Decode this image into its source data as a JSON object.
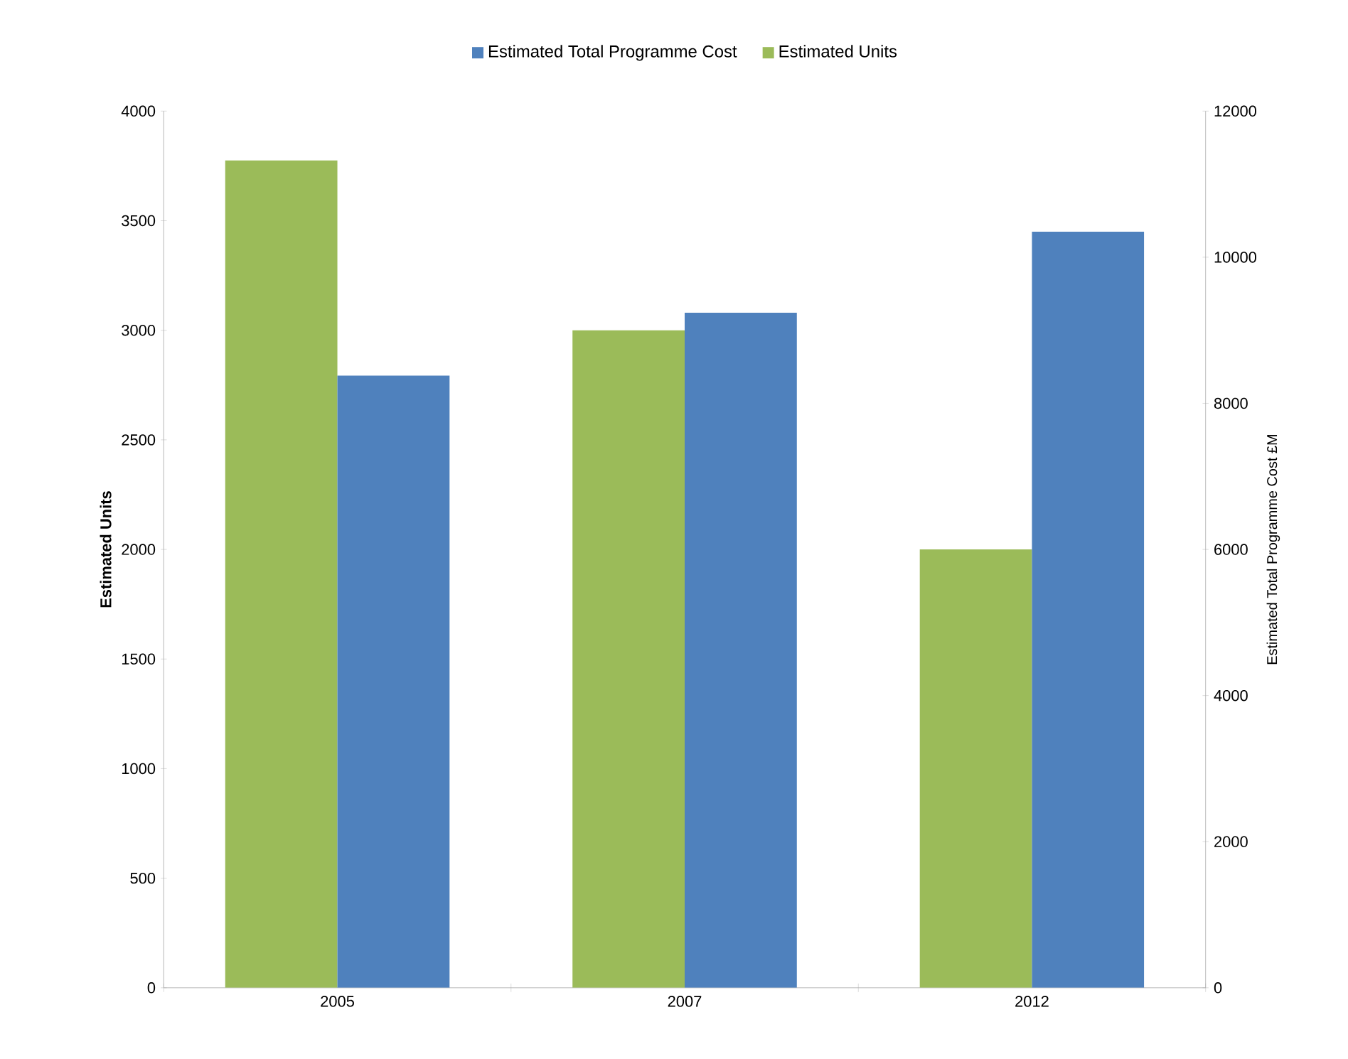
{
  "chart_data": {
    "type": "bar",
    "categories": [
      "2005",
      "2007",
      "2012"
    ],
    "ylabel": "Estimated Units",
    "y2label": "Estimated Total Programme Cost £M",
    "series": [
      {
        "name": "Estimated Total Programme Cost",
        "color": "#4f81bd",
        "axis": "y2",
        "values": [
          8380,
          9240,
          10350
        ]
      },
      {
        "name": "Estimated Units",
        "color": "#9bbb59",
        "values": [
          3775,
          3000,
          2000
        ]
      }
    ],
    "ylim": [
      0,
      4000
    ],
    "yticks": [
      0,
      500,
      1000,
      1500,
      2000,
      2500,
      3000,
      3500,
      4000
    ],
    "y2lim": [
      0,
      12000
    ],
    "y2ticks": [
      0,
      2000,
      4000,
      6000,
      8000,
      10000,
      12000
    ],
    "grid": false,
    "legend": "top"
  }
}
